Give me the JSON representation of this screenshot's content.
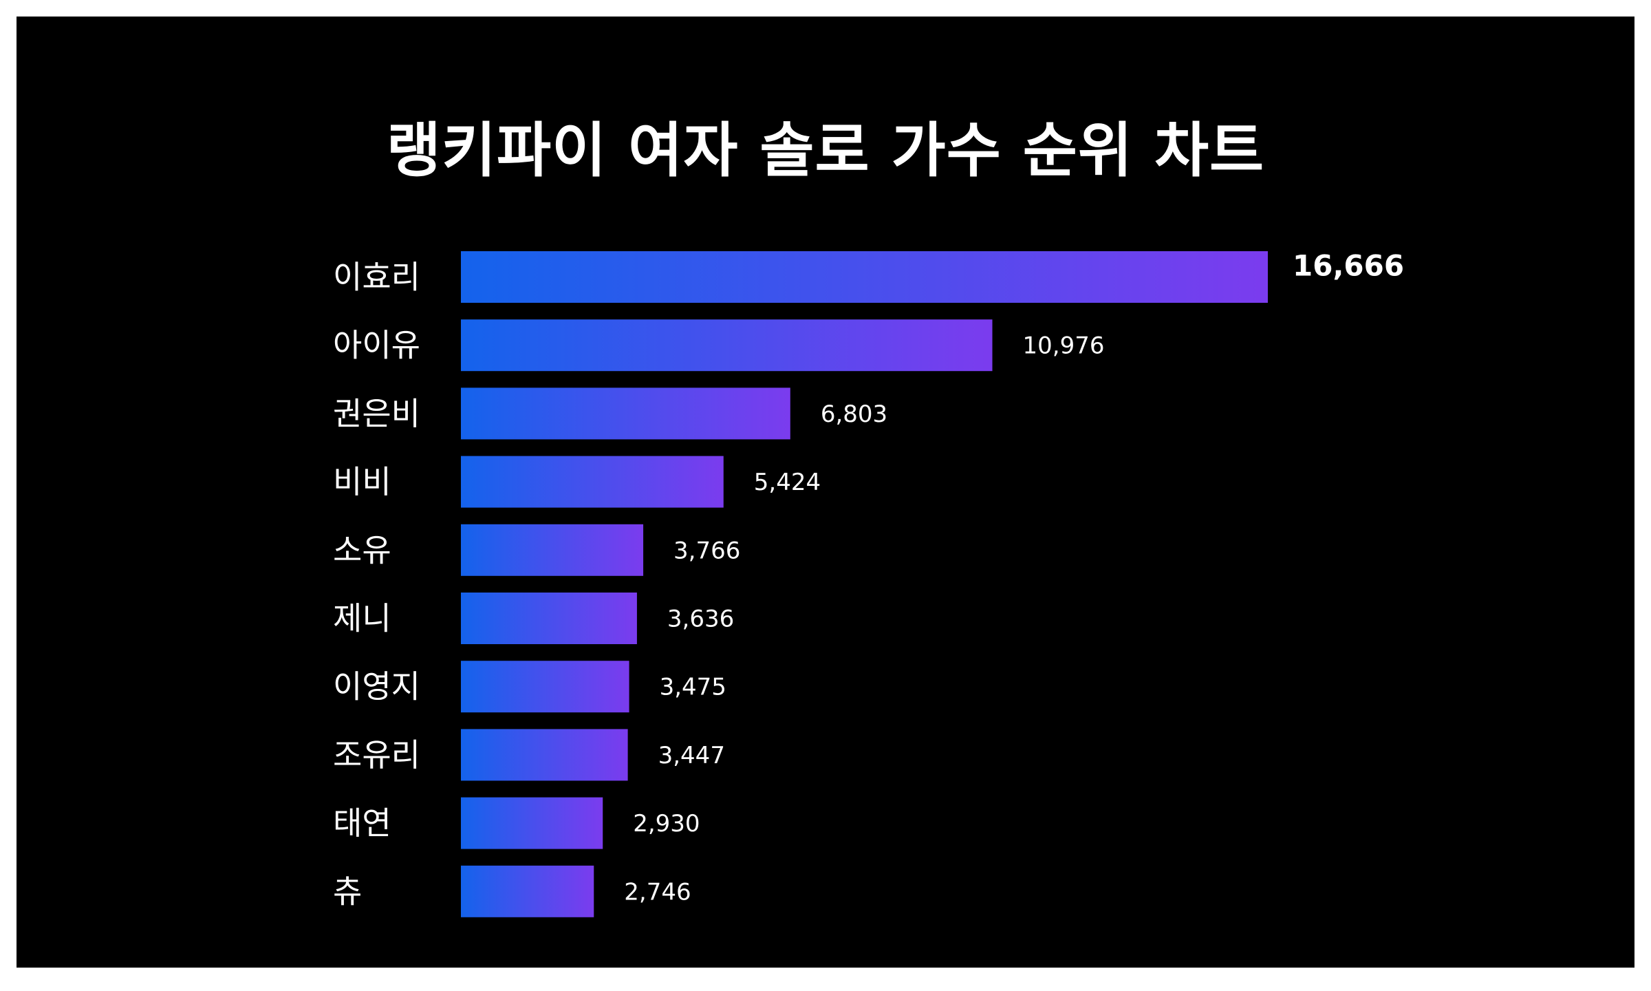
{
  "chart_data": {
    "type": "bar",
    "orientation": "horizontal",
    "title": "랭키파이 여자 솔로 가수 순위 차트",
    "categories": [
      "이효리",
      "아이유",
      "권은비",
      "비비",
      "소유",
      "제니",
      "이영지",
      "조유리",
      "태연",
      "츄"
    ],
    "values": [
      16666,
      10976,
      6803,
      5424,
      3766,
      3636,
      3475,
      3447,
      2930,
      2746
    ],
    "value_labels": [
      "16,666",
      "10,976",
      "6,803",
      "5,424",
      "3,766",
      "3,636",
      "3,475",
      "3,447",
      "2,930",
      "2,746"
    ],
    "xlim": [
      0,
      16666
    ],
    "grid": false,
    "legend": "none",
    "colors": {
      "background": "#000000",
      "bar_gradient_start": "#1463ec",
      "bar_gradient_end": "#7b3cee",
      "text": "#ffffff"
    }
  }
}
